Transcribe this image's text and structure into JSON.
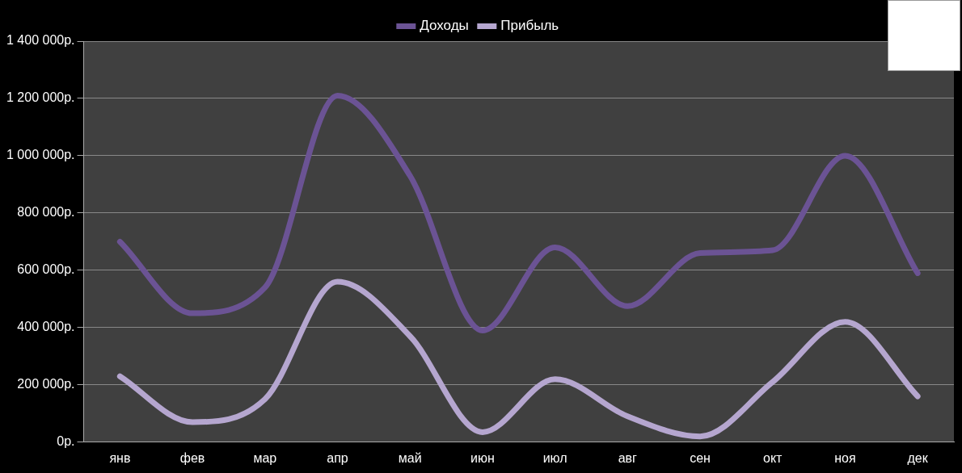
{
  "chart_data": {
    "type": "line",
    "categories": [
      "янв",
      "фев",
      "мар",
      "апр",
      "май",
      "июн",
      "июл",
      "авг",
      "сен",
      "окт",
      "ноя",
      "дек"
    ],
    "series": [
      {
        "name": "Доходы",
        "color": "#6b5394",
        "values": [
          700000,
          450000,
          540000,
          1210000,
          930000,
          390000,
          680000,
          475000,
          660000,
          670000,
          1000000,
          590000
        ]
      },
      {
        "name": "Прибыль",
        "color": "#b5a6cf",
        "values": [
          230000,
          70000,
          150000,
          560000,
          370000,
          35000,
          220000,
          90000,
          20000,
          210000,
          420000,
          160000
        ]
      }
    ],
    "ylim": [
      0,
      1400000
    ],
    "yticks": [
      {
        "value": 0,
        "label": "0р."
      },
      {
        "value": 200000,
        "label": "200 000р."
      },
      {
        "value": 400000,
        "label": "400 000р."
      },
      {
        "value": 600000,
        "label": "600 000р."
      },
      {
        "value": 800000,
        "label": "800 000р."
      },
      {
        "value": 1000000,
        "label": "1 000 000р."
      },
      {
        "value": 1200000,
        "label": "1 200 000р."
      },
      {
        "value": 1400000,
        "label": "1 400 000р."
      }
    ],
    "grid": "y",
    "legend": "top",
    "marker": "none",
    "line_style": "solid"
  }
}
